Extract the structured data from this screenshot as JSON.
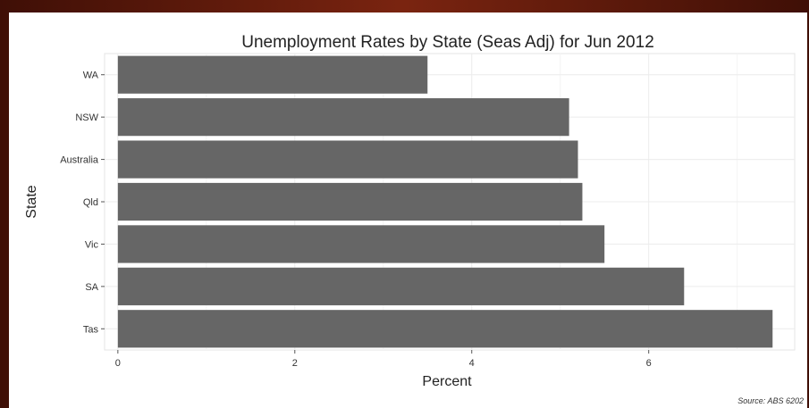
{
  "chart_data": {
    "type": "bar",
    "orientation": "horizontal",
    "title": "Unemployment Rates by State (Seas Adj) for Jun 2012",
    "xlabel": "Percent",
    "ylabel": "State",
    "categories": [
      "WA",
      "NSW",
      "Australia",
      "Qld",
      "Vic",
      "SA",
      "Tas"
    ],
    "values": [
      3.5,
      5.1,
      5.2,
      5.25,
      5.5,
      6.4,
      7.4
    ],
    "xlim": [
      -0.15,
      7.65
    ],
    "xticks": [
      0,
      2,
      4,
      6
    ],
    "grid": true,
    "bar_color": "#666666",
    "source": "Source: ABS 6202"
  }
}
